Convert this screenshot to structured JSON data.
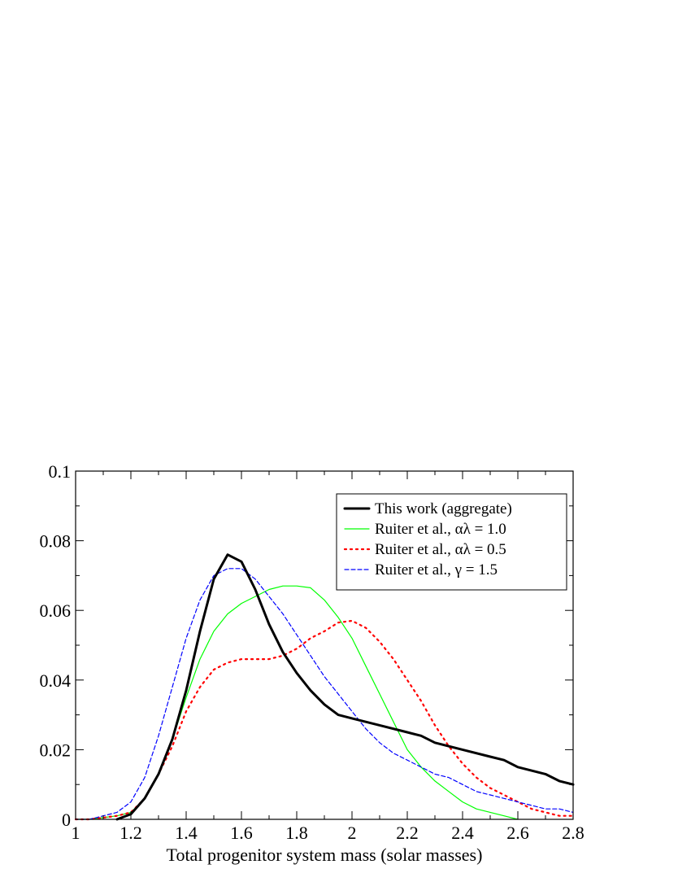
{
  "chart_data": {
    "type": "line",
    "xlabel": "Total progenitor system mass (solar masses)",
    "ylabel": "",
    "xlim": [
      1.0,
      2.8
    ],
    "ylim": [
      0,
      0.1
    ],
    "x_ticks": [
      "1",
      "1.2",
      "1.4",
      "1.6",
      "1.8",
      "2",
      "2.2",
      "2.4",
      "2.6",
      "2.8"
    ],
    "y_ticks": [
      "0",
      "0.02",
      "0.04",
      "0.06",
      "0.08",
      "0.1"
    ],
    "grid": false,
    "legend_position": "top-right",
    "series": [
      {
        "name": "This work (aggregate)",
        "color": "#000000",
        "style": "solid-thick",
        "x": [
          1.15,
          1.2,
          1.25,
          1.3,
          1.35,
          1.4,
          1.45,
          1.5,
          1.55,
          1.6,
          1.65,
          1.7,
          1.75,
          1.8,
          1.85,
          1.9,
          1.95,
          2.0,
          2.1,
          2.2,
          2.25,
          2.3,
          2.4,
          2.5,
          2.55,
          2.6,
          2.7,
          2.75,
          2.8
        ],
        "y": [
          0.0,
          0.0015,
          0.006,
          0.013,
          0.023,
          0.037,
          0.054,
          0.069,
          0.076,
          0.074,
          0.066,
          0.056,
          0.048,
          0.042,
          0.037,
          0.033,
          0.03,
          0.029,
          0.027,
          0.025,
          0.024,
          0.022,
          0.02,
          0.018,
          0.017,
          0.015,
          0.013,
          0.011,
          0.01
        ]
      },
      {
        "name": "Ruiter et al., αλ = 1.0",
        "color": "#00ff00",
        "style": "solid",
        "x": [
          1.0,
          1.05,
          1.1,
          1.15,
          1.2,
          1.25,
          1.3,
          1.35,
          1.4,
          1.45,
          1.5,
          1.55,
          1.6,
          1.65,
          1.7,
          1.75,
          1.8,
          1.85,
          1.9,
          1.95,
          2.0,
          2.05,
          2.1,
          2.15,
          2.2,
          2.25,
          2.3,
          2.35,
          2.4,
          2.45,
          2.5,
          2.55,
          2.6
        ],
        "y": [
          0.0,
          0.0,
          0.0005,
          0.001,
          0.002,
          0.006,
          0.013,
          0.023,
          0.035,
          0.046,
          0.054,
          0.059,
          0.062,
          0.064,
          0.066,
          0.067,
          0.067,
          0.0665,
          0.063,
          0.058,
          0.052,
          0.044,
          0.036,
          0.028,
          0.02,
          0.015,
          0.011,
          0.008,
          0.005,
          0.003,
          0.002,
          0.001,
          0.0
        ]
      },
      {
        "name": "Ruiter et al., αλ = 0.5",
        "color": "#ff0000",
        "style": "dotted",
        "x": [
          1.0,
          1.05,
          1.1,
          1.15,
          1.2,
          1.25,
          1.3,
          1.35,
          1.4,
          1.45,
          1.5,
          1.55,
          1.6,
          1.65,
          1.7,
          1.75,
          1.8,
          1.85,
          1.9,
          1.95,
          2.0,
          2.05,
          2.1,
          2.15,
          2.2,
          2.25,
          2.3,
          2.35,
          2.4,
          2.45,
          2.5,
          2.55,
          2.6,
          2.65,
          2.7,
          2.75,
          2.8
        ],
        "y": [
          0.0,
          0.0,
          0.0005,
          0.001,
          0.002,
          0.006,
          0.013,
          0.021,
          0.031,
          0.038,
          0.043,
          0.045,
          0.046,
          0.046,
          0.046,
          0.047,
          0.049,
          0.052,
          0.054,
          0.0565,
          0.057,
          0.055,
          0.051,
          0.046,
          0.04,
          0.034,
          0.027,
          0.021,
          0.016,
          0.012,
          0.009,
          0.007,
          0.005,
          0.003,
          0.002,
          0.001,
          0.001
        ]
      },
      {
        "name": "Ruiter et al., γ = 1.5",
        "color": "#0000ff",
        "style": "dashed",
        "x": [
          1.0,
          1.05,
          1.1,
          1.15,
          1.2,
          1.25,
          1.3,
          1.35,
          1.4,
          1.45,
          1.5,
          1.55,
          1.6,
          1.65,
          1.7,
          1.75,
          1.8,
          1.85,
          1.9,
          1.95,
          2.0,
          2.05,
          2.1,
          2.15,
          2.2,
          2.25,
          2.3,
          2.35,
          2.4,
          2.45,
          2.5,
          2.55,
          2.6,
          2.65,
          2.7,
          2.75,
          2.8
        ],
        "y": [
          0.0,
          0.0,
          0.001,
          0.002,
          0.005,
          0.012,
          0.024,
          0.038,
          0.052,
          0.063,
          0.07,
          0.072,
          0.072,
          0.069,
          0.064,
          0.059,
          0.053,
          0.047,
          0.041,
          0.036,
          0.031,
          0.026,
          0.022,
          0.019,
          0.017,
          0.015,
          0.013,
          0.012,
          0.01,
          0.008,
          0.007,
          0.006,
          0.005,
          0.004,
          0.003,
          0.003,
          0.002
        ]
      }
    ]
  }
}
